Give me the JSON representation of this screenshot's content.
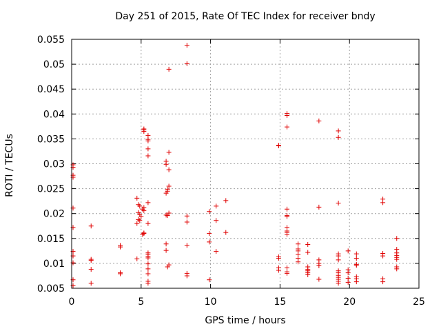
{
  "chart_data": {
    "type": "scatter",
    "title": "Day 251 of 2015, Rate Of TEC Index for receiver bndy",
    "xlabel": "GPS time / hours",
    "ylabel": "ROTI / TECUs",
    "xlim": [
      0,
      25
    ],
    "ylim": [
      0.005,
      0.055
    ],
    "xticks": [
      0,
      5,
      10,
      15,
      20,
      25
    ],
    "xtick_labels": [
      "0",
      "5",
      "10",
      "15",
      "20",
      "25"
    ],
    "yticks": [
      0.005,
      0.01,
      0.015,
      0.02,
      0.025,
      0.03,
      0.035,
      0.04,
      0.045,
      0.05,
      0.055
    ],
    "ytick_labels": [
      "0.005",
      "0.01",
      "0.015",
      "0.02",
      "0.025",
      "0.03",
      "0.035",
      "0.04",
      "0.045",
      "0.05",
      "0.055"
    ],
    "grid": true,
    "marker": "+",
    "color": "#e00000",
    "series": [
      {
        "name": "ROTI",
        "points": [
          [
            0.1,
            0.0298
          ],
          [
            0.1,
            0.0293
          ],
          [
            0.1,
            0.0277
          ],
          [
            0.1,
            0.0273
          ],
          [
            0.1,
            0.0211
          ],
          [
            0.1,
            0.0172
          ],
          [
            0.1,
            0.0124
          ],
          [
            0.1,
            0.0115
          ],
          [
            0.1,
            0.0101
          ],
          [
            0.1,
            0.0067
          ],
          [
            0.1,
            0.0055
          ],
          [
            1.4,
            0.0175
          ],
          [
            1.4,
            0.0108
          ],
          [
            1.4,
            0.0106
          ],
          [
            1.4,
            0.0088
          ],
          [
            1.4,
            0.006
          ],
          [
            3.5,
            0.0136
          ],
          [
            3.5,
            0.0133
          ],
          [
            3.5,
            0.0081
          ],
          [
            3.5,
            0.0079
          ],
          [
            4.7,
            0.0231
          ],
          [
            4.8,
            0.0218
          ],
          [
            4.9,
            0.0215
          ],
          [
            4.8,
            0.0202
          ],
          [
            4.9,
            0.0198
          ],
          [
            5.0,
            0.0194
          ],
          [
            4.8,
            0.0188
          ],
          [
            4.7,
            0.018
          ],
          [
            4.9,
            0.0186
          ],
          [
            4.7,
            0.0109
          ],
          [
            5.1,
            0.0209
          ],
          [
            5.2,
            0.0206
          ],
          [
            5.2,
            0.0212
          ],
          [
            5.1,
            0.0158
          ],
          [
            5.2,
            0.016
          ],
          [
            5.2,
            0.0161
          ],
          [
            5.2,
            0.0365
          ],
          [
            5.2,
            0.0368
          ],
          [
            5.2,
            0.037
          ],
          [
            5.5,
            0.0357
          ],
          [
            5.5,
            0.0349
          ],
          [
            5.5,
            0.0346
          ],
          [
            5.5,
            0.033
          ],
          [
            5.5,
            0.0316
          ],
          [
            5.5,
            0.0222
          ],
          [
            5.5,
            0.018
          ],
          [
            5.5,
            0.0121
          ],
          [
            5.5,
            0.0118
          ],
          [
            5.5,
            0.0114
          ],
          [
            5.5,
            0.0111
          ],
          [
            5.5,
            0.0099
          ],
          [
            5.5,
            0.0089
          ],
          [
            5.5,
            0.0079
          ],
          [
            5.5,
            0.0064
          ],
          [
            5.5,
            0.006
          ],
          [
            6.8,
            0.0305
          ],
          [
            6.8,
            0.0299
          ],
          [
            7.0,
            0.0323
          ],
          [
            7.0,
            0.0288
          ],
          [
            7.0,
            0.0255
          ],
          [
            6.9,
            0.0249
          ],
          [
            6.9,
            0.0245
          ],
          [
            6.8,
            0.0241
          ],
          [
            7.0,
            0.0201
          ],
          [
            6.8,
            0.0197
          ],
          [
            6.9,
            0.0196
          ],
          [
            6.8,
            0.0139
          ],
          [
            6.8,
            0.0126
          ],
          [
            7.0,
            0.0097
          ],
          [
            6.9,
            0.0093
          ],
          [
            7.0,
            0.049
          ],
          [
            8.3,
            0.0538
          ],
          [
            8.3,
            0.0501
          ],
          [
            8.3,
            0.0195
          ],
          [
            8.3,
            0.0183
          ],
          [
            8.3,
            0.0136
          ],
          [
            8.3,
            0.008
          ],
          [
            8.3,
            0.0075
          ],
          [
            9.9,
            0.0204
          ],
          [
            9.9,
            0.016
          ],
          [
            9.9,
            0.0143
          ],
          [
            9.9,
            0.0067
          ],
          [
            10.4,
            0.0215
          ],
          [
            10.4,
            0.0186
          ],
          [
            10.4,
            0.0124
          ],
          [
            11.1,
            0.0226
          ],
          [
            11.1,
            0.0162
          ],
          [
            14.9,
            0.0337
          ],
          [
            14.9,
            0.0336
          ],
          [
            14.9,
            0.0113
          ],
          [
            14.9,
            0.011
          ],
          [
            14.9,
            0.0091
          ],
          [
            14.9,
            0.0086
          ],
          [
            15.5,
            0.0401
          ],
          [
            15.5,
            0.0397
          ],
          [
            15.5,
            0.0374
          ],
          [
            15.5,
            0.0209
          ],
          [
            15.5,
            0.0196
          ],
          [
            15.5,
            0.0194
          ],
          [
            15.5,
            0.0172
          ],
          [
            15.5,
            0.0165
          ],
          [
            15.5,
            0.0162
          ],
          [
            15.5,
            0.0158
          ],
          [
            15.5,
            0.0091
          ],
          [
            15.5,
            0.0083
          ],
          [
            15.5,
            0.008
          ],
          [
            16.3,
            0.0139
          ],
          [
            16.3,
            0.0129
          ],
          [
            16.3,
            0.0125
          ],
          [
            16.3,
            0.0118
          ],
          [
            16.3,
            0.011
          ],
          [
            16.3,
            0.0103
          ],
          [
            17.0,
            0.0138
          ],
          [
            17.0,
            0.0122
          ],
          [
            17.0,
            0.0093
          ],
          [
            17.0,
            0.0088
          ],
          [
            17.0,
            0.0085
          ],
          [
            17.0,
            0.0081
          ],
          [
            17.0,
            0.0077
          ],
          [
            17.8,
            0.0386
          ],
          [
            17.8,
            0.0213
          ],
          [
            17.8,
            0.0107
          ],
          [
            17.8,
            0.01
          ],
          [
            17.8,
            0.0095
          ],
          [
            17.8,
            0.0068
          ],
          [
            19.2,
            0.0366
          ],
          [
            19.2,
            0.0353
          ],
          [
            19.2,
            0.0221
          ],
          [
            19.2,
            0.0119
          ],
          [
            19.2,
            0.0115
          ],
          [
            19.2,
            0.0107
          ],
          [
            19.2,
            0.0085
          ],
          [
            19.2,
            0.0081
          ],
          [
            19.2,
            0.0076
          ],
          [
            19.2,
            0.0072
          ],
          [
            19.2,
            0.0068
          ],
          [
            19.2,
            0.0064
          ],
          [
            19.2,
            0.006
          ],
          [
            19.9,
            0.0125
          ],
          [
            19.9,
            0.0087
          ],
          [
            19.9,
            0.0081
          ],
          [
            19.9,
            0.007
          ],
          [
            19.9,
            0.0062
          ],
          [
            20.5,
            0.0119
          ],
          [
            20.5,
            0.011
          ],
          [
            20.5,
            0.0098
          ],
          [
            20.5,
            0.0096
          ],
          [
            20.5,
            0.0073
          ],
          [
            20.5,
            0.0069
          ],
          [
            20.5,
            0.0063
          ],
          [
            22.4,
            0.0229
          ],
          [
            22.4,
            0.0222
          ],
          [
            22.4,
            0.012
          ],
          [
            22.4,
            0.0115
          ],
          [
            22.4,
            0.0069
          ],
          [
            22.4,
            0.0063
          ],
          [
            23.4,
            0.015
          ],
          [
            23.4,
            0.0128
          ],
          [
            23.4,
            0.0121
          ],
          [
            23.4,
            0.0116
          ],
          [
            23.4,
            0.0112
          ],
          [
            23.4,
            0.0108
          ],
          [
            23.4,
            0.0093
          ],
          [
            23.4,
            0.0089
          ]
        ]
      }
    ]
  }
}
